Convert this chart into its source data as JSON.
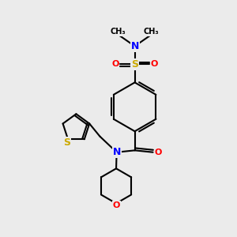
{
  "background_color": "#ebebeb",
  "atom_colors": {
    "C": "#000000",
    "N": "#0000ff",
    "O": "#ff0000",
    "S": "#ccaa00",
    "H": "#000000"
  },
  "bond_color": "#000000",
  "figsize": [
    3.0,
    3.0
  ],
  "dpi": 100,
  "xlim": [
    0,
    10
  ],
  "ylim": [
    0,
    10
  ]
}
